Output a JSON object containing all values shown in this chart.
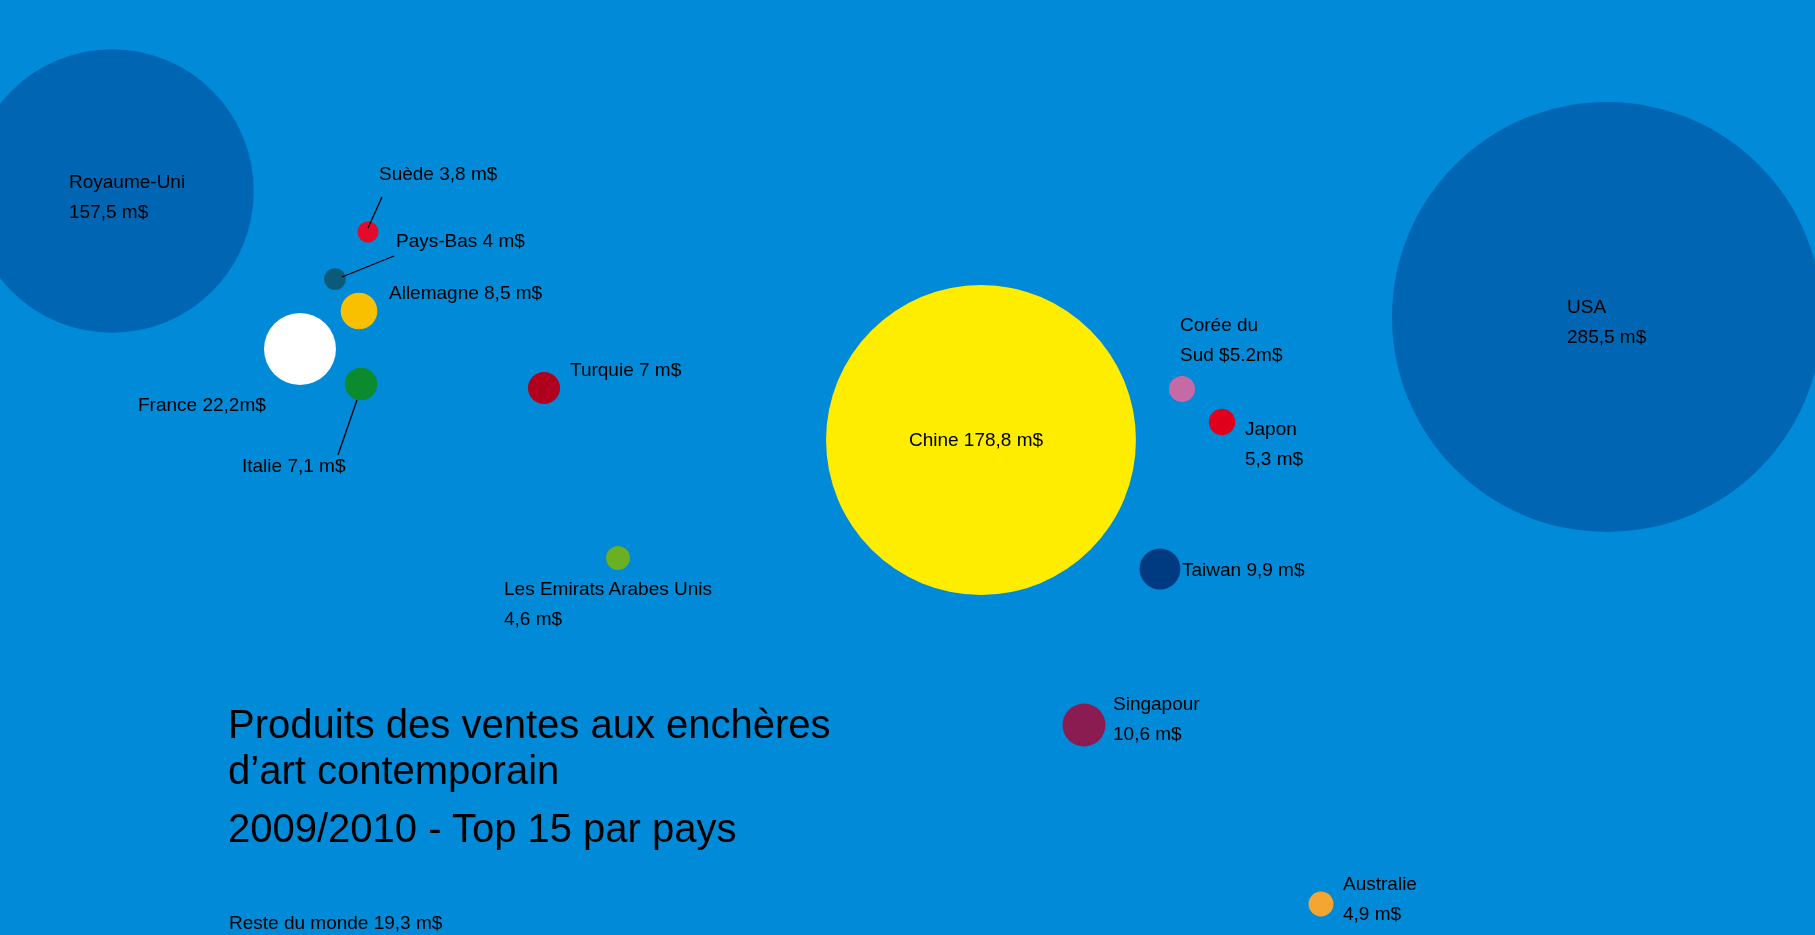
{
  "chart_data": {
    "type": "other",
    "title": "Produits des ventes aux enchères d’art contemporain",
    "subtitle": "2009/2010 - Top 15 par pays",
    "categories": [
      "Royaume-Uni",
      "Suède",
      "Pays-Bas",
      "Allemagne",
      "France",
      "Italie",
      "Turquie",
      "Les Emirats Arabes Unis",
      "Chine",
      "Corée du Sud",
      "Japon",
      "Taiwan",
      "Singapour",
      "Australie",
      "USA"
    ],
    "values": [
      157.5,
      3.8,
      4,
      8.5,
      22.2,
      7.1,
      7,
      4.6,
      178.8,
      5.2,
      5.3,
      9.9,
      10.6,
      4.9,
      285.5
    ],
    "value_labels": [
      "157,5 m$",
      "3,8 m$",
      "4 m$",
      "8,5 m$",
      "22,2m$",
      "7,1 m$",
      "7 m$",
      "4,6 m$",
      "178,8 m$",
      "$5.2m$",
      "5,3 m$",
      "9,9 m$",
      "10,6 m$",
      "4,9 m$",
      "285,5 m$"
    ],
    "colors": [
      "#0066b3",
      "#e30a2a",
      "#0a5a7a",
      "#f9c000",
      "#ffffff",
      "#0b8a2e",
      "#b0001e",
      "#6ab023",
      "#ffed00",
      "#c66aa5",
      "#e0001b",
      "#003a80",
      "#8a1c52",
      "#f5a631",
      "#0066b3"
    ],
    "annotations": [
      "Reste du monde 19,3 m$"
    ]
  }
}
